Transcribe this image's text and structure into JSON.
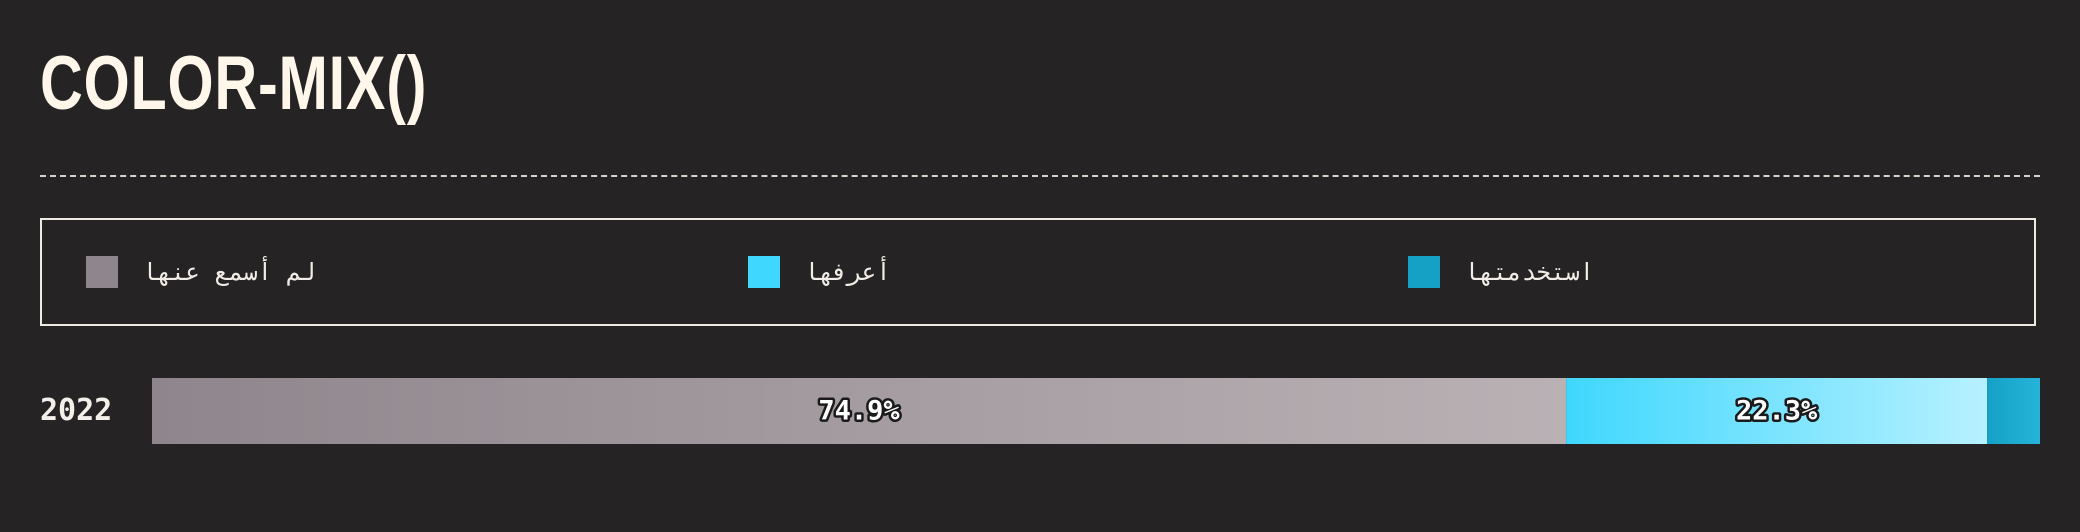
{
  "title": "COLOR-MIX()",
  "legend": [
    {
      "label": "لم أسمع عنها",
      "color": "#8e868c"
    },
    {
      "label": "أعرفها",
      "color": "#3fd7fd"
    },
    {
      "label": "استخدمتها",
      "color": "#15a1c5"
    }
  ],
  "chart_data": {
    "type": "bar",
    "orientation": "horizontal",
    "stacked": true,
    "categories": [
      "2022"
    ],
    "series": [
      {
        "name": "لم أسمع عنها",
        "values": [
          74.9
        ],
        "label": "74.9%",
        "color_from": "#8e868c",
        "color_to": "#b9b1b4"
      },
      {
        "name": "أعرفها",
        "values": [
          22.3
        ],
        "label": "22.3%",
        "color_from": "#3fd7fd",
        "color_to": "#b7f1ff"
      },
      {
        "name": "استخدمتها",
        "values": [
          2.8
        ],
        "label": "",
        "color_from": "#15a1c5",
        "color_to": "#25b4da"
      }
    ],
    "xlim": [
      0,
      100
    ],
    "legend_position": "top"
  }
}
